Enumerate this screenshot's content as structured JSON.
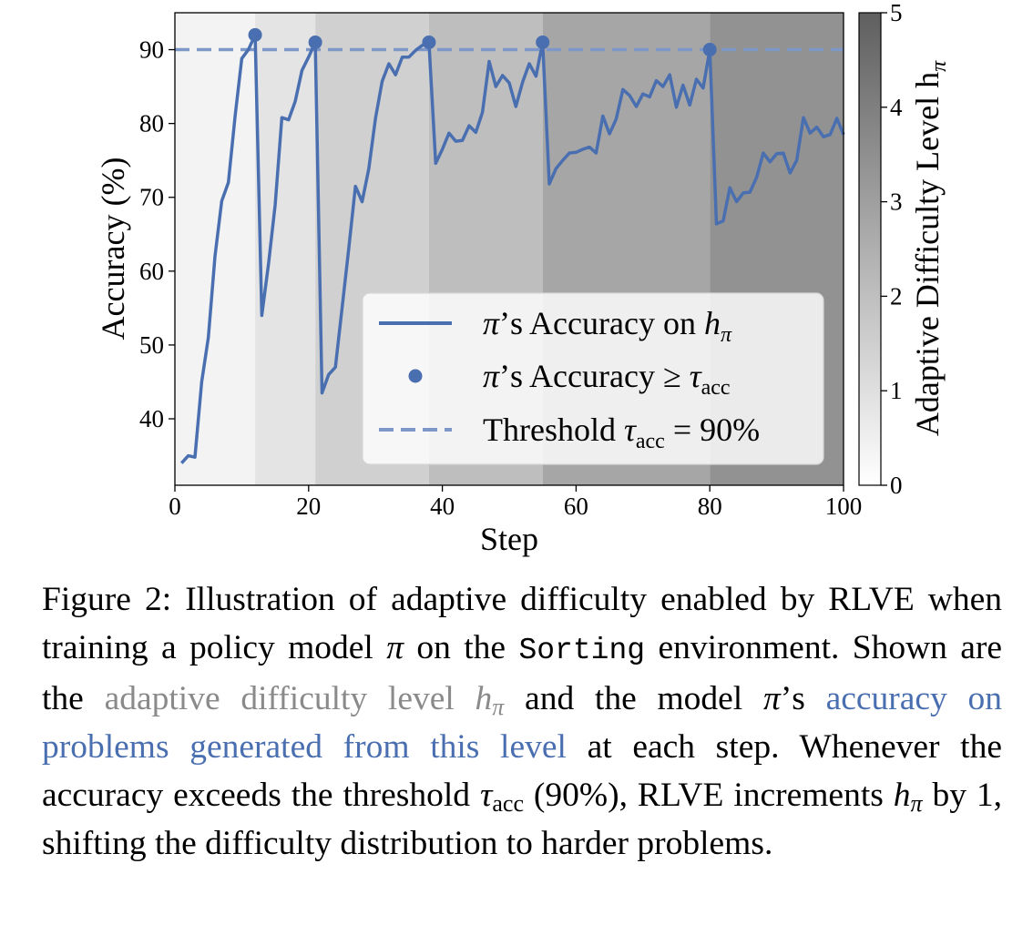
{
  "chart_data": {
    "type": "line",
    "xlabel": "Step",
    "ylabel": "Accuracy (%)",
    "xlim": [
      0,
      100
    ],
    "ylim": [
      31,
      95
    ],
    "xticks": [
      0,
      20,
      40,
      60,
      80,
      100
    ],
    "yticks": [
      40,
      50,
      60,
      70,
      80,
      90
    ],
    "xtick_labels": [
      "0",
      "20",
      "40",
      "60",
      "80",
      "100"
    ],
    "ytick_labels": [
      "40",
      "50",
      "60",
      "70",
      "80",
      "90"
    ],
    "colorbar": {
      "label": "Adaptive Difficulty Level h",
      "label_sub": "π",
      "range": [
        0,
        5
      ],
      "ticks": [
        0,
        1,
        2,
        3,
        4,
        5
      ],
      "tick_labels": [
        "0",
        "1",
        "2",
        "3",
        "4",
        "5"
      ]
    },
    "difficulty_bands": [
      {
        "start": 0,
        "end": 12,
        "level": 0
      },
      {
        "start": 12,
        "end": 21,
        "level": 0.5
      },
      {
        "start": 21,
        "end": 38,
        "level": 1.2
      },
      {
        "start": 38,
        "end": 55,
        "level": 1.8
      },
      {
        "start": 55,
        "end": 80,
        "level": 2.6
      },
      {
        "start": 80,
        "end": 100,
        "level": 3.3
      }
    ],
    "threshold": 90,
    "series": [
      {
        "name": "π's Accuracy on hπ",
        "x": [
          1,
          2,
          3,
          4,
          5,
          6,
          7,
          8,
          9,
          10,
          11,
          12,
          13,
          14,
          15,
          16,
          17,
          18,
          19,
          20,
          21,
          22,
          23,
          24,
          25,
          26,
          27,
          28,
          29,
          30,
          31,
          32,
          33,
          34,
          35,
          36,
          37,
          38,
          39,
          40,
          41,
          42,
          43,
          44,
          45,
          46,
          47,
          48,
          49,
          50,
          51,
          52,
          53,
          54,
          55,
          56,
          57,
          58,
          59,
          60,
          61,
          62,
          63,
          64,
          65,
          66,
          67,
          68,
          69,
          70,
          71,
          72,
          73,
          74,
          75,
          76,
          77,
          78,
          79,
          80,
          81,
          82,
          83,
          84,
          85,
          86,
          87,
          88,
          89,
          90,
          91,
          92,
          93,
          94,
          95,
          96,
          97,
          98,
          99,
          100
        ],
        "y": [
          34,
          35,
          34.8,
          45,
          51,
          62,
          69.5,
          72,
          81,
          88.8,
          90,
          92,
          54,
          61,
          69,
          80.8,
          80.5,
          83,
          87.2,
          89,
          91,
          43.5,
          46,
          47,
          55,
          63,
          71.5,
          69.4,
          73.9,
          80.7,
          85.7,
          88.1,
          86.6,
          89,
          89,
          89.9,
          90.6,
          91,
          74.6,
          76.5,
          78.7,
          77.6,
          77.7,
          79.7,
          78.8,
          81.5,
          88.4,
          85,
          86.5,
          85.5,
          82.3,
          85.6,
          88.1,
          86.4,
          91,
          71.8,
          73.9,
          75,
          76,
          76.1,
          76.5,
          76.8,
          76,
          81,
          78.6,
          80.6,
          84.6,
          83.8,
          82.3,
          84,
          83.6,
          85.8,
          85,
          86.6,
          82.2,
          85.2,
          82.5,
          86,
          84.8,
          90,
          66.4,
          66.8,
          71.3,
          69.4,
          70.6,
          70.7,
          72.7,
          76,
          74.8,
          75.9,
          76,
          73.3,
          75,
          80.8,
          78.7,
          79.5,
          78.2,
          78.5,
          80.7,
          78.5
        ]
      }
    ],
    "threshold_points": {
      "name": "π's Accuracy ≥ τacc",
      "x": [
        12,
        21,
        38,
        55,
        80
      ],
      "y": [
        92,
        91,
        91,
        91,
        90
      ]
    },
    "legend_position": "lower-right",
    "legend": {
      "line_label": "’s Accuracy on ",
      "points_label": "’s Accuracy ≥ ",
      "threshold_label_prefix": "Threshold ",
      "threshold_label_suffix": " = 90%",
      "tau": "τ",
      "tau_sub": "acc",
      "pi": "π",
      "h": "h"
    },
    "colors": {
      "line": "#4a6fb0",
      "threshold": "#7e97c9",
      "band_light": "#f3f3f3",
      "band_dark": "#6b6b6b"
    }
  },
  "caption": {
    "label": "Figure 2:",
    "t1": "Illustration of adaptive difficulty enabled by RLVE when training a policy model",
    "pi": "π",
    "t2": "on the",
    "env": "Sorting",
    "t3": "environment. Shown are the",
    "gray_text": "adaptive difficulty level",
    "h": "h",
    "t4": "and the model",
    "t5": "’s",
    "blue_text": "accuracy on problems generated from this level",
    "t6": "at each step. Whenever the accuracy exceeds the threshold",
    "tau": "τ",
    "tau_sub": "acc",
    "t7": "(90%), RLVE increments",
    "t8": "by 1, shifting the difficulty distribution to harder problems."
  }
}
